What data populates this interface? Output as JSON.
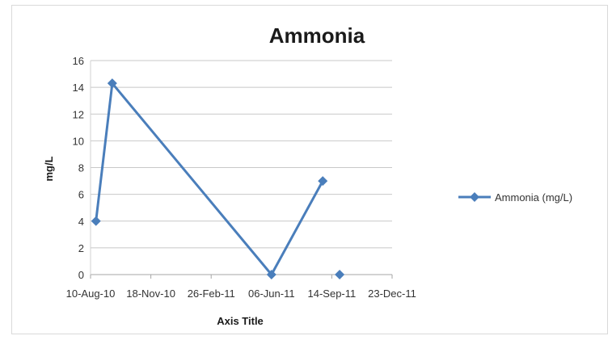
{
  "chart_data": {
    "type": "line",
    "title": "Ammonia",
    "xlabel": "Axis Title",
    "ylabel": "mg/L",
    "x_tick_labels": [
      "10-Aug-10",
      "18-Nov-10",
      "26-Feb-11",
      "06-Jun-11",
      "14-Sep-11",
      "23-Dec-11"
    ],
    "x_ticks": [
      "2010-08-10",
      "2010-11-18",
      "2011-02-26",
      "2011-06-06",
      "2011-09-14",
      "2011-12-23"
    ],
    "xlim": [
      "2010-08-10",
      "2011-12-23"
    ],
    "ylim": [
      0,
      16
    ],
    "y_ticks": [
      0,
      2,
      4,
      6,
      8,
      10,
      12,
      14,
      16
    ],
    "grid": true,
    "legend_position": "right",
    "series": [
      {
        "name": "Ammonia (mg/L)",
        "color": "#4a7ebb",
        "marker": "diamond",
        "points": [
          {
            "x": "2010-08-19",
            "y": 4
          },
          {
            "x": "2010-09-15",
            "y": 14.3
          },
          {
            "x": "2011-06-06",
            "y": 0
          },
          {
            "x": "2011-08-30",
            "y": 7
          },
          {
            "x": "2011-09-27",
            "y": 0,
            "connected": false
          }
        ]
      }
    ]
  }
}
